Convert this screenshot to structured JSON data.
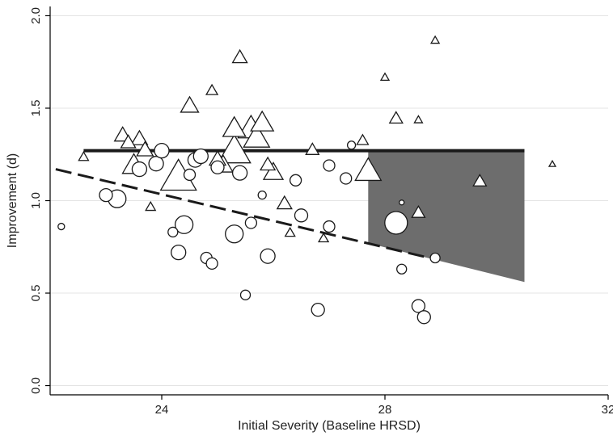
{
  "chart_data": {
    "type": "scatter",
    "title": "",
    "xlabel": "Initial Severity (Baseline HRSD)",
    "ylabel": "Improvement (d)",
    "xlim": [
      22.0,
      32.0
    ],
    "ylim": [
      -0.05,
      2.05
    ],
    "xticks": [
      24,
      28,
      32
    ],
    "yticks": [
      0.0,
      0.5,
      1.0,
      1.5,
      2.0
    ],
    "ytick_labels": [
      "0.0",
      "0.5",
      "1.0",
      "1.5",
      "2.0"
    ],
    "grid": "horizontal-light",
    "series": [
      {
        "marker": "triangle",
        "points": [
          {
            "x": 22.6,
            "y": 1.24,
            "size": 6
          },
          {
            "x": 23.3,
            "y": 1.36,
            "size": 10
          },
          {
            "x": 23.4,
            "y": 1.32,
            "size": 9
          },
          {
            "x": 23.5,
            "y": 1.2,
            "size": 14
          },
          {
            "x": 23.6,
            "y": 1.34,
            "size": 10
          },
          {
            "x": 23.7,
            "y": 1.28,
            "size": 10
          },
          {
            "x": 23.8,
            "y": 0.97,
            "size": 6
          },
          {
            "x": 24.3,
            "y": 1.14,
            "size": 22
          },
          {
            "x": 24.5,
            "y": 1.52,
            "size": 11
          },
          {
            "x": 24.9,
            "y": 1.6,
            "size": 7
          },
          {
            "x": 25.0,
            "y": 1.23,
            "size": 10
          },
          {
            "x": 25.1,
            "y": 1.2,
            "size": 12
          },
          {
            "x": 25.3,
            "y": 1.28,
            "size": 20
          },
          {
            "x": 25.3,
            "y": 1.4,
            "size": 14
          },
          {
            "x": 25.4,
            "y": 1.78,
            "size": 9
          },
          {
            "x": 25.6,
            "y": 1.4,
            "size": 16
          },
          {
            "x": 25.7,
            "y": 1.35,
            "size": 16
          },
          {
            "x": 25.8,
            "y": 1.43,
            "size": 14
          },
          {
            "x": 25.9,
            "y": 1.2,
            "size": 9
          },
          {
            "x": 26.0,
            "y": 1.16,
            "size": 12
          },
          {
            "x": 26.2,
            "y": 0.99,
            "size": 9
          },
          {
            "x": 26.3,
            "y": 0.83,
            "size": 6
          },
          {
            "x": 26.7,
            "y": 1.28,
            "size": 8
          },
          {
            "x": 26.9,
            "y": 0.8,
            "size": 6
          },
          {
            "x": 27.6,
            "y": 1.33,
            "size": 7
          },
          {
            "x": 27.7,
            "y": 1.17,
            "size": 16
          },
          {
            "x": 28.0,
            "y": 1.67,
            "size": 5
          },
          {
            "x": 28.2,
            "y": 1.45,
            "size": 8
          },
          {
            "x": 28.6,
            "y": 0.94,
            "size": 8
          },
          {
            "x": 28.6,
            "y": 1.44,
            "size": 5
          },
          {
            "x": 28.9,
            "y": 1.87,
            "size": 5
          },
          {
            "x": 29.7,
            "y": 1.11,
            "size": 8
          },
          {
            "x": 31.0,
            "y": 1.2,
            "size": 4
          }
        ]
      },
      {
        "marker": "circle",
        "points": [
          {
            "x": 22.2,
            "y": 0.86,
            "size": 4
          },
          {
            "x": 23.0,
            "y": 1.03,
            "size": 8
          },
          {
            "x": 23.2,
            "y": 1.01,
            "size": 11
          },
          {
            "x": 23.6,
            "y": 1.17,
            "size": 9
          },
          {
            "x": 23.9,
            "y": 1.2,
            "size": 9
          },
          {
            "x": 24.0,
            "y": 1.27,
            "size": 9
          },
          {
            "x": 24.2,
            "y": 0.83,
            "size": 6
          },
          {
            "x": 24.3,
            "y": 0.72,
            "size": 9
          },
          {
            "x": 24.4,
            "y": 0.87,
            "size": 11
          },
          {
            "x": 24.5,
            "y": 1.14,
            "size": 7
          },
          {
            "x": 24.6,
            "y": 1.22,
            "size": 9
          },
          {
            "x": 24.7,
            "y": 1.24,
            "size": 9
          },
          {
            "x": 24.8,
            "y": 0.69,
            "size": 7
          },
          {
            "x": 24.9,
            "y": 0.66,
            "size": 7
          },
          {
            "x": 25.0,
            "y": 1.18,
            "size": 8
          },
          {
            "x": 25.3,
            "y": 0.82,
            "size": 11
          },
          {
            "x": 25.4,
            "y": 1.15,
            "size": 9
          },
          {
            "x": 25.5,
            "y": 0.49,
            "size": 6
          },
          {
            "x": 25.6,
            "y": 0.88,
            "size": 7
          },
          {
            "x": 25.8,
            "y": 1.03,
            "size": 5
          },
          {
            "x": 25.9,
            "y": 0.7,
            "size": 9
          },
          {
            "x": 26.4,
            "y": 1.11,
            "size": 7
          },
          {
            "x": 26.5,
            "y": 0.92,
            "size": 8
          },
          {
            "x": 26.8,
            "y": 0.41,
            "size": 8
          },
          {
            "x": 27.0,
            "y": 1.19,
            "size": 7
          },
          {
            "x": 27.0,
            "y": 0.86,
            "size": 7
          },
          {
            "x": 27.3,
            "y": 1.12,
            "size": 7
          },
          {
            "x": 27.4,
            "y": 1.3,
            "size": 5
          },
          {
            "x": 28.2,
            "y": 0.88,
            "size": 14
          },
          {
            "x": 28.3,
            "y": 0.63,
            "size": 6
          },
          {
            "x": 28.3,
            "y": 0.99,
            "size": 3
          },
          {
            "x": 28.6,
            "y": 0.43,
            "size": 8
          },
          {
            "x": 28.7,
            "y": 0.37,
            "size": 8
          },
          {
            "x": 28.9,
            "y": 0.69,
            "size": 6
          }
        ]
      }
    ],
    "fit_lines": [
      {
        "style": "solid",
        "points": [
          [
            22.6,
            1.27
          ],
          [
            30.5,
            1.27
          ]
        ]
      },
      {
        "style": "dashed",
        "points": [
          [
            22.1,
            1.17
          ],
          [
            28.8,
            0.69
          ]
        ]
      }
    ],
    "shaded_region": {
      "color": "#6d6d6d",
      "polygon": [
        [
          27.7,
          1.27
        ],
        [
          30.5,
          1.27
        ],
        [
          30.5,
          0.56
        ],
        [
          27.7,
          0.77
        ]
      ]
    }
  }
}
